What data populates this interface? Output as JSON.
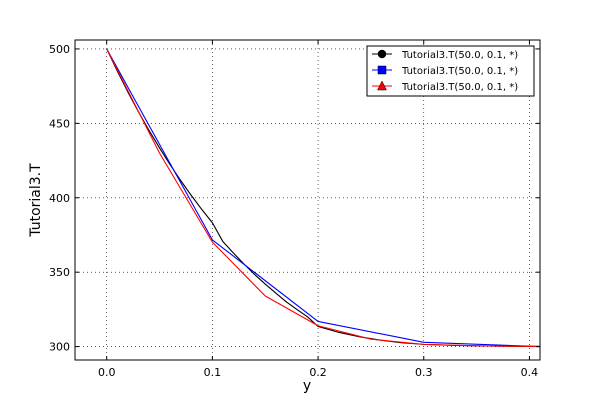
{
  "chart_data": {
    "type": "line",
    "title": "",
    "xlabel": "y",
    "ylabel": "Tutorial3.T",
    "xlim": [
      -0.03,
      0.41
    ],
    "ylim": [
      291,
      506
    ],
    "x_ticks": [
      0.0,
      0.1,
      0.2,
      0.3,
      0.4
    ],
    "x_tick_labels": [
      "0.0",
      "0.1",
      "0.2",
      "0.3",
      "0.4"
    ],
    "y_ticks": [
      300,
      350,
      400,
      450,
      500
    ],
    "y_tick_labels": [
      "300",
      "350",
      "400",
      "450",
      "500"
    ],
    "grid": true,
    "legend_position": "top-right",
    "series": [
      {
        "name": "Tutorial3.T(50.0, 0.1, *)",
        "color": "#000000",
        "marker": "circle",
        "x": [
          0.0,
          0.01,
          0.02,
          0.03,
          0.04,
          0.05,
          0.06,
          0.07,
          0.08,
          0.09,
          0.1,
          0.11,
          0.12,
          0.13,
          0.14,
          0.15,
          0.16,
          0.17,
          0.18,
          0.19,
          0.2,
          0.22,
          0.24,
          0.26,
          0.28,
          0.3,
          0.33,
          0.36,
          0.39,
          0.41
        ],
        "y": [
          500.0,
          485.2,
          471.1,
          457.8,
          445.3,
          433.5,
          422.2,
          411.6,
          401.6,
          392.1,
          383.2,
          370.5,
          362.8,
          355.4,
          348.4,
          342.0,
          336.0,
          330.0,
          325.0,
          320.0,
          313.5,
          309.5,
          306.5,
          304.2,
          302.5,
          301.5,
          300.8,
          300.4,
          300.2,
          300.1
        ]
      },
      {
        "name": "Tutorial3.T(50.0, 0.1, *)",
        "color": "#0000ff",
        "marker": "square",
        "x": [
          0.0,
          0.1,
          0.2,
          0.3,
          0.41
        ],
        "y": [
          500.0,
          371.7,
          316.9,
          302.9,
          300.0
        ]
      },
      {
        "name": "Tutorial3.T(50.0, 0.1, *)",
        "color": "#ff0000",
        "marker": "triangle",
        "x": [
          0.0,
          0.05,
          0.1,
          0.15,
          0.2,
          0.25,
          0.3,
          0.35,
          0.41
        ],
        "y": [
          500.0,
          430.0,
          370.2,
          334.0,
          314.0,
          305.0,
          301.5,
          300.5,
          300.0
        ]
      }
    ]
  }
}
